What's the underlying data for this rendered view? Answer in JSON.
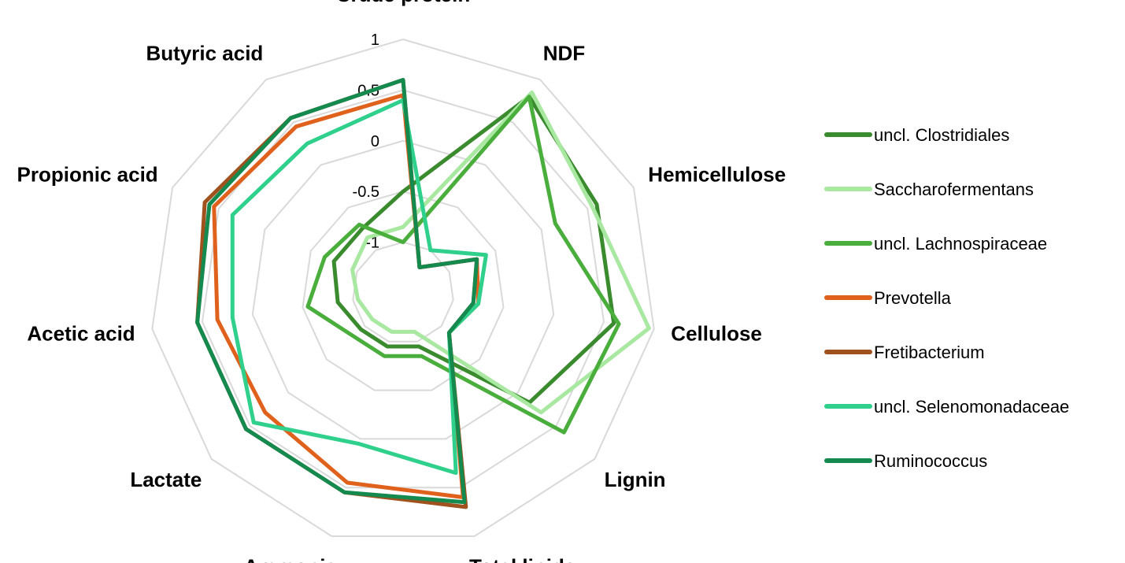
{
  "chart_data": {
    "type": "radar",
    "axes": [
      "Crude protein",
      "NDF",
      "Hemicellulose",
      "Cellulose",
      "Lignin",
      "Total lipids",
      "Ammonia",
      "Lactate",
      "Acetic acid",
      "Propionic acid",
      "Butyric acid"
    ],
    "ticks": [
      "1",
      "0.5",
      "0",
      "-0.5",
      "-1"
    ],
    "range": [
      -1.5,
      1
    ],
    "grid": true,
    "legend_position": "right",
    "series": [
      {
        "name": "uncl. Clostridiales",
        "color": "#3a8a2e",
        "values": [
          -0.5,
          0.8,
          0.6,
          0.6,
          0.15,
          -0.95,
          -0.95,
          -0.95,
          -0.85,
          -0.75,
          -0.75
        ]
      },
      {
        "name": "Saccharofermentans",
        "color": "#a8e8a0",
        "values": [
          -0.85,
          0.85,
          0.55,
          0.95,
          0.3,
          -1.1,
          -1.1,
          -1.1,
          -1.05,
          -0.95,
          -0.85
        ]
      },
      {
        "name": "uncl. Lachnospiraceae",
        "color": "#4aae3c",
        "values": [
          -1.0,
          0.8,
          0.15,
          0.65,
          0.6,
          -0.85,
          -0.85,
          -0.85,
          -0.55,
          -0.65,
          -0.7
        ]
      },
      {
        "name": "Prevotella",
        "color": "#e0611c",
        "values": [
          0.45,
          -1.2,
          -0.7,
          -0.75,
          -0.9,
          0.6,
          0.45,
          0.3,
          0.35,
          0.55,
          0.45
        ]
      },
      {
        "name": "Fretibacterium",
        "color": "#a0521e",
        "values": [
          0.6,
          -1.2,
          -0.7,
          -0.8,
          -0.9,
          0.7,
          0.55,
          0.55,
          0.55,
          0.65,
          0.55
        ]
      },
      {
        "name": "uncl. Selenomonadaceae",
        "color": "#2fd08c",
        "values": [
          0.4,
          -1.0,
          -0.6,
          -0.75,
          -0.9,
          0.35,
          0.05,
          0.45,
          0.2,
          0.35,
          0.25
        ]
      },
      {
        "name": "Ruminococcus",
        "color": "#148a4e",
        "values": [
          0.6,
          -1.2,
          -0.7,
          -0.8,
          -0.9,
          0.65,
          0.55,
          0.55,
          0.55,
          0.6,
          0.55
        ]
      }
    ]
  }
}
